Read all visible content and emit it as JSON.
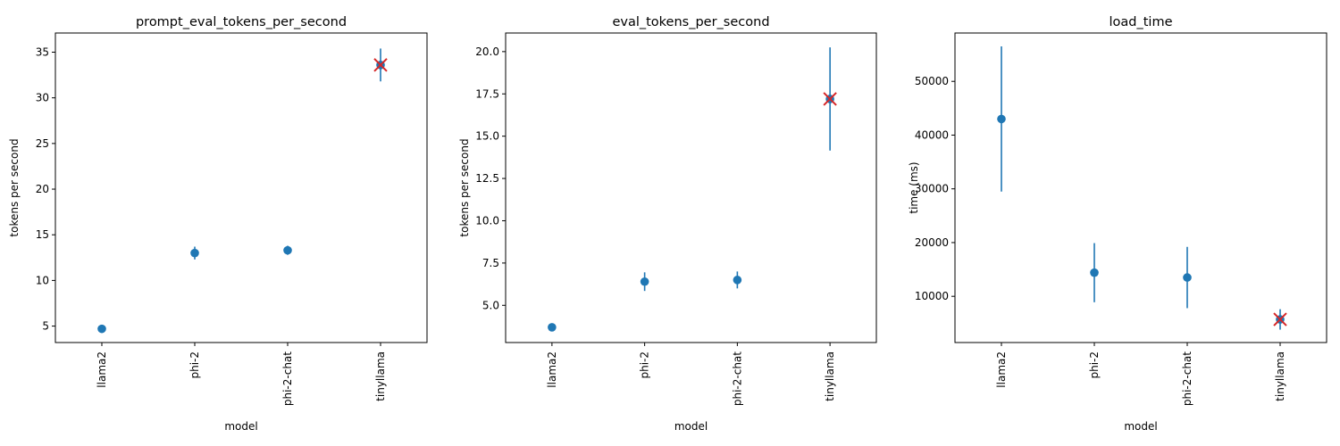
{
  "colors": {
    "marker": "#1f77b4",
    "highlight": "#d62728",
    "axes": "#000000",
    "background": "#ffffff"
  },
  "chart_data": [
    {
      "type": "scatter",
      "title": "prompt_eval_tokens_per_second",
      "xlabel": "model",
      "ylabel": "tokens per second",
      "categories": [
        "llama2",
        "phi-2",
        "phi-2-chat",
        "tinyllama"
      ],
      "values": [
        4.7,
        13.0,
        13.3,
        33.6
      ],
      "errors": [
        0.1,
        0.7,
        0.5,
        1.8
      ],
      "highlight_category": "tinyllama",
      "ylim": [
        3.2,
        37.1
      ],
      "yticks": [
        5,
        10,
        15,
        20,
        25,
        30,
        35
      ],
      "ytick_labels": [
        "5",
        "10",
        "15",
        "20",
        "25",
        "30",
        "35"
      ],
      "grid": false
    },
    {
      "type": "scatter",
      "title": "eval_tokens_per_second",
      "xlabel": "model",
      "ylabel": "tokens per second",
      "categories": [
        "llama2",
        "phi-2",
        "phi-2-chat",
        "tinyllama"
      ],
      "values": [
        3.7,
        6.4,
        6.5,
        17.2
      ],
      "errors": [
        0.05,
        0.55,
        0.5,
        3.05
      ],
      "highlight_category": "tinyllama",
      "ylim": [
        2.8,
        21.1
      ],
      "yticks": [
        5,
        7.5,
        10,
        12.5,
        15,
        17.5,
        20
      ],
      "ytick_labels": [
        "5.0",
        "7.5",
        "10.0",
        "12.5",
        "15.0",
        "17.5",
        "20.0"
      ],
      "grid": false
    },
    {
      "type": "scatter",
      "title": "load_time",
      "xlabel": "model",
      "ylabel": "time (ms)",
      "categories": [
        "llama2",
        "phi-2",
        "phi-2-chat",
        "tinyllama"
      ],
      "values": [
        43000,
        14400,
        13500,
        5700
      ],
      "errors": [
        13500,
        5500,
        5700,
        1900
      ],
      "highlight_category": "tinyllama",
      "ylim": [
        1400,
        59000
      ],
      "yticks": [
        10000,
        20000,
        30000,
        40000,
        50000
      ],
      "ytick_labels": [
        "10000",
        "20000",
        "30000",
        "40000",
        "50000"
      ],
      "grid": false
    }
  ]
}
